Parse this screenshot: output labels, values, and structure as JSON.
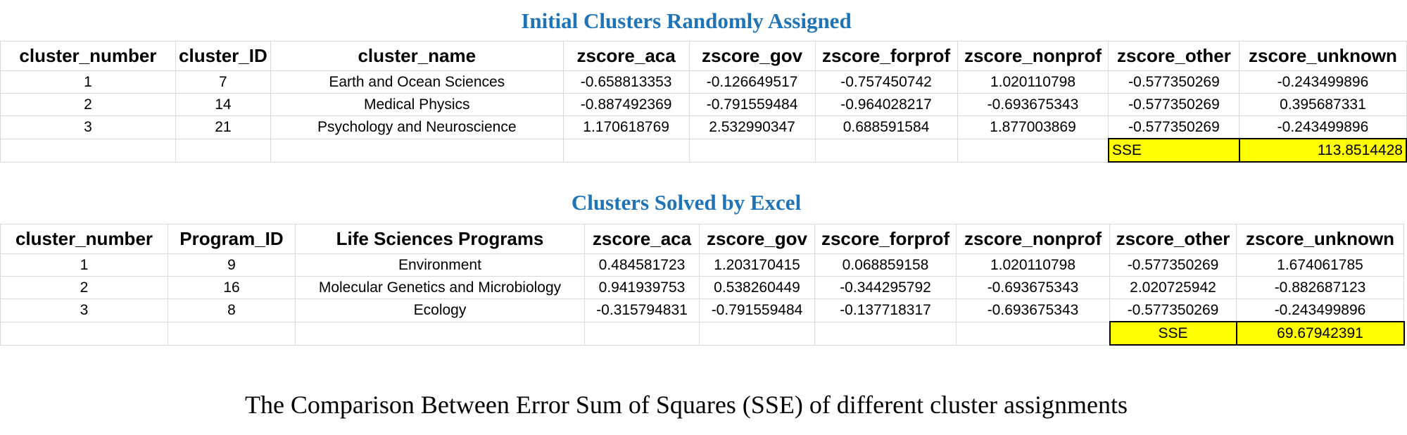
{
  "table1": {
    "title": "Initial Clusters Randomly Assigned",
    "headers": [
      "cluster_number",
      "cluster_ID",
      "cluster_name",
      "zscore_aca",
      "zscore_gov",
      "zscore_forprof",
      "zscore_nonprof",
      "zscore_other",
      "zscore_unknown"
    ],
    "rows": [
      [
        "1",
        "7",
        "Earth and Ocean Sciences",
        "-0.658813353",
        "-0.126649517",
        "-0.757450742",
        "1.020110798",
        "-0.577350269",
        "-0.243499896"
      ],
      [
        "2",
        "14",
        "Medical Physics",
        "-0.887492369",
        "-0.791559484",
        "-0.964028217",
        "-0.693675343",
        "-0.577350269",
        "0.395687331"
      ],
      [
        "3",
        "21",
        "Psychology and Neuroscience",
        "1.170618769",
        "2.532990347",
        "0.688591584",
        "1.877003869",
        "-0.577350269",
        "-0.243499896"
      ]
    ],
    "sse_label": "SSE",
    "sse_value": "113.8514428"
  },
  "table2": {
    "title": "Clusters Solved by Excel",
    "headers": [
      "cluster_number",
      "Program_ID",
      "Life Sciences Programs",
      "zscore_aca",
      "zscore_gov",
      "zscore_forprof",
      "zscore_nonprof",
      "zscore_other",
      "zscore_unknown"
    ],
    "rows": [
      [
        "1",
        "9",
        "Environment",
        "0.484581723",
        "1.203170415",
        "0.068859158",
        "1.020110798",
        "-0.577350269",
        "1.674061785"
      ],
      [
        "2",
        "16",
        "Molecular Genetics and Microbiology",
        "0.941939753",
        "0.538260449",
        "-0.344295792",
        "-0.693675343",
        "2.020725942",
        "-0.882687123"
      ],
      [
        "3",
        "8",
        "Ecology",
        "-0.315794831",
        "-0.791559484",
        "-0.137718317",
        "-0.693675343",
        "-0.577350269",
        "-0.243499896"
      ]
    ],
    "sse_label": "SSE",
    "sse_value": "69.67942391"
  },
  "caption": "The Comparison Between Error Sum of Squares (SSE) of different cluster assignments",
  "colors": {
    "title_blue": "#1f73b7",
    "highlight_yellow": "#ffff00",
    "gridline": "#d9d9d9"
  }
}
